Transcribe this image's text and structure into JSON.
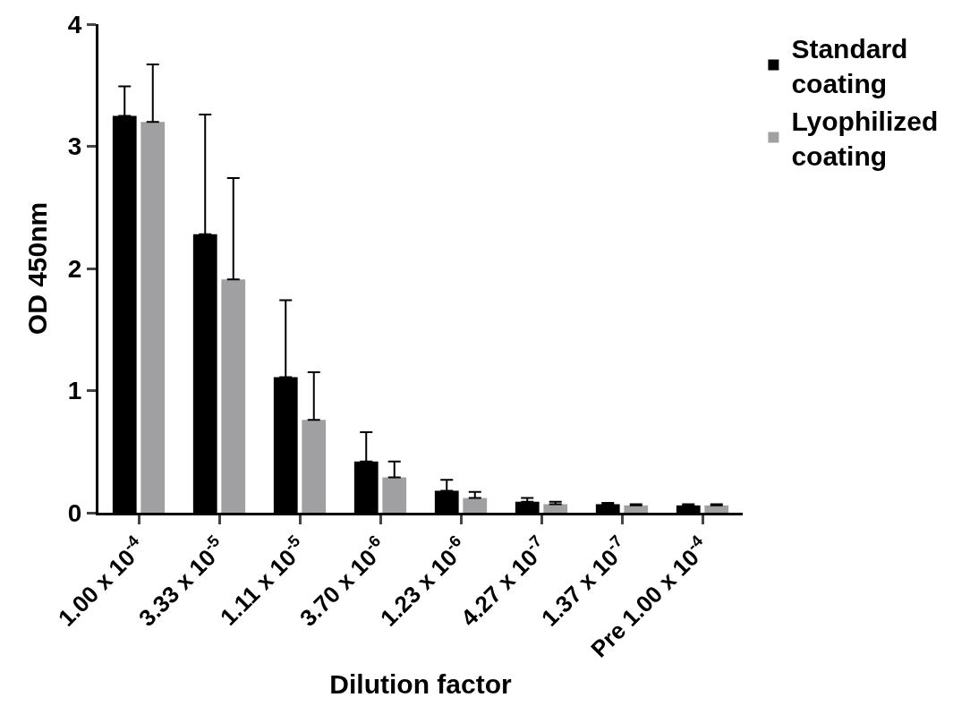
{
  "chart_data": {
    "type": "bar",
    "xlabel": "Dilution factor",
    "ylabel": "OD 450nm",
    "categories": [
      "1.00 x 10$^{-4}$",
      "3.33 x 10$^{-5}$",
      "1.11 x 10$^{-5}$",
      "3.70 x 10$^{-6}$",
      "1.23 x 10$^{-6}$",
      "4.27 x 10$^{-7}$",
      "1.37 x 10$^{-7}$",
      "Pre 1.00 x 10$^{-4}$"
    ],
    "series": [
      {
        "name": "Standard coating",
        "color": "#000000",
        "values": [
          3.25,
          2.28,
          1.11,
          0.42,
          0.18,
          0.09,
          0.07,
          0.06
        ],
        "errors": [
          [
            3.25,
            3.49
          ],
          [
            2.28,
            3.26
          ],
          [
            1.11,
            1.74
          ],
          [
            0.42,
            0.66
          ],
          [
            0.18,
            0.27
          ],
          [
            0.09,
            0.12
          ],
          [
            0.07,
            0.08
          ],
          [
            0.06,
            0.07
          ]
        ]
      },
      {
        "name": "Lyophilized coating",
        "color": "#a0a0a2",
        "values": [
          3.2,
          1.91,
          0.76,
          0.29,
          0.12,
          0.07,
          0.06,
          0.06
        ],
        "errors": [
          [
            3.2,
            3.67
          ],
          [
            1.91,
            2.74
          ],
          [
            0.76,
            1.15
          ],
          [
            0.29,
            0.42
          ],
          [
            0.12,
            0.17
          ],
          [
            0.07,
            0.09
          ],
          [
            0.06,
            0.07
          ],
          [
            0.06,
            0.07
          ]
        ]
      }
    ],
    "ylim": [
      0,
      4
    ],
    "yticks": [
      0,
      1,
      2,
      3,
      4
    ],
    "legend": "top right"
  }
}
